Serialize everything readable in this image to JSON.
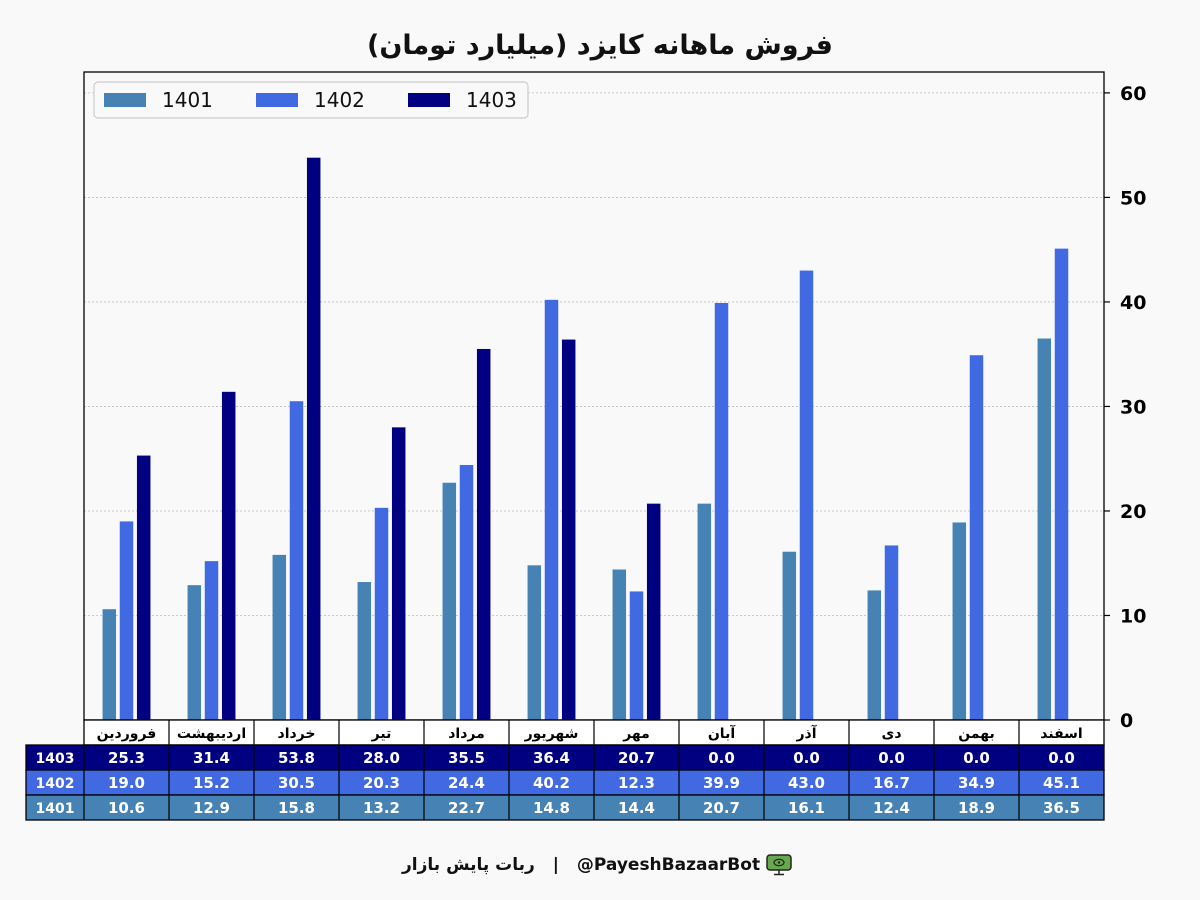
{
  "chart_data": {
    "type": "bar",
    "title": "فروش ماهانه کایزد (میلیارد تومان)",
    "categories": [
      "فروردین",
      "اردیبهشت",
      "خرداد",
      "تیر",
      "مرداد",
      "شهریور",
      "مهر",
      "آبان",
      "آذر",
      "دی",
      "بهمن",
      "اسفند"
    ],
    "series": [
      {
        "name": "1401",
        "color": "#4682b4",
        "values": [
          10.6,
          12.9,
          15.8,
          13.2,
          22.7,
          14.8,
          14.4,
          20.7,
          16.1,
          12.4,
          18.9,
          36.5
        ]
      },
      {
        "name": "1402",
        "color": "#4169e1",
        "values": [
          19.0,
          15.2,
          30.5,
          20.3,
          24.4,
          40.2,
          12.3,
          39.9,
          43.0,
          16.7,
          34.9,
          45.1
        ]
      },
      {
        "name": "1403",
        "color": "#000080",
        "values": [
          25.3,
          31.4,
          53.8,
          28.0,
          35.5,
          36.4,
          20.7,
          0.0,
          0.0,
          0.0,
          0.0,
          0.0
        ]
      }
    ],
    "ylim": [
      0,
      62
    ],
    "yticks": [
      0,
      10,
      20,
      30,
      40,
      50,
      60
    ],
    "y_axis_side": "right",
    "grid": true,
    "legend_position": "top-left",
    "table_row_order": [
      "1403",
      "1402",
      "1401"
    ]
  },
  "footer": {
    "brand": "ربات پایش بازار",
    "separator": "|",
    "handle": "@PayeshBazaarBot",
    "icon": "robot-monitor-icon"
  }
}
